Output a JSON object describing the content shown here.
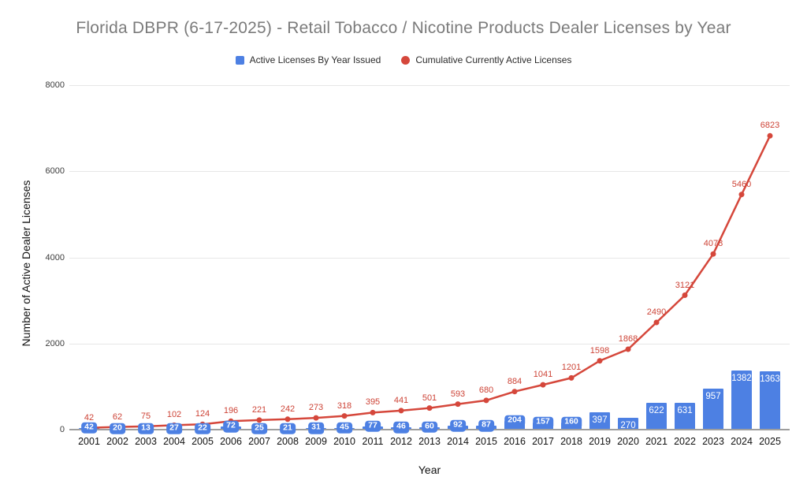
{
  "title": "Florida DBPR (6-17-2025) - Retail Tobacco / Nicotine Products Dealer Licenses by Year",
  "legend": {
    "items": [
      {
        "label": "Active Licenses By Year Issued",
        "color": "#4d80e3",
        "shape": "square"
      },
      {
        "label": "Cumulative Currently Active Licenses",
        "color": "#d5473b",
        "shape": "circle"
      }
    ]
  },
  "colors": {
    "bar_blue": "#4d80e3",
    "line_red": "#d5473b",
    "label_red": "#cd4336",
    "title_gray": "#7b7b7b",
    "gridline": "#e7e7e7",
    "axis_line": "#9e9e9e"
  },
  "chart_data": {
    "type": "bar",
    "subtype": "combo-bar-line",
    "title": "Florida DBPR (6-17-2025) - Retail Tobacco / Nicotine Products Dealer Licenses by Year",
    "xlabel": "Year",
    "ylabel": "Number of Active Dealer Licenses",
    "categories": [
      2001,
      2002,
      2003,
      2004,
      2005,
      2006,
      2007,
      2008,
      2009,
      2010,
      2011,
      2012,
      2013,
      2014,
      2015,
      2016,
      2017,
      2018,
      2019,
      2020,
      2021,
      2022,
      2023,
      2024,
      2025
    ],
    "series": [
      {
        "name": "Active Licenses By Year Issued",
        "type": "bar",
        "color": "#4d80e3",
        "values": [
          42,
          20,
          13,
          27,
          22,
          72,
          25,
          21,
          31,
          45,
          77,
          46,
          60,
          92,
          87,
          204,
          157,
          160,
          397,
          270,
          622,
          631,
          957,
          1382,
          1363
        ]
      },
      {
        "name": "Cumulative Currently Active Licenses",
        "type": "line",
        "color": "#d5473b",
        "values": [
          42,
          62,
          75,
          102,
          124,
          196,
          221,
          242,
          273,
          318,
          395,
          441,
          501,
          593,
          680,
          884,
          1041,
          1201,
          1598,
          1868,
          2490,
          3121,
          4078,
          5460,
          6823
        ]
      }
    ],
    "ylim": [
      0,
      8000
    ],
    "yticks": [
      0,
      2000,
      4000,
      6000,
      8000
    ],
    "grid": true,
    "legend_position": "top",
    "data_labels": true
  }
}
